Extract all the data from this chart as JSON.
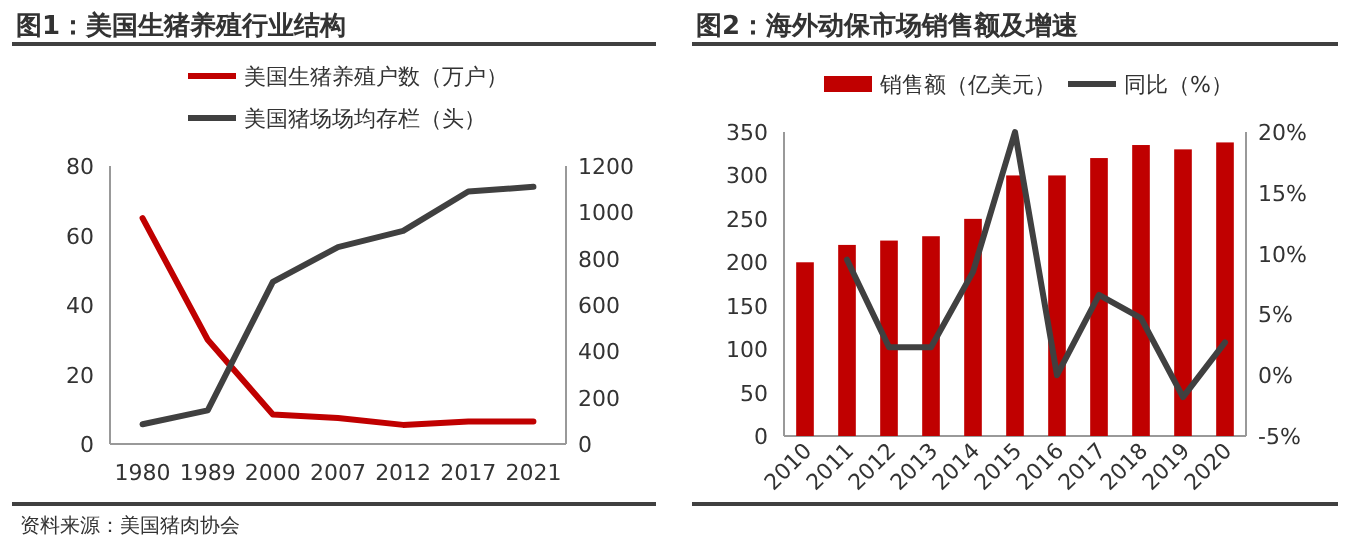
{
  "chart_data": [
    {
      "type": "line",
      "title": "图1：美国生猪养殖行业结构",
      "categories": [
        "1980",
        "1989",
        "2000",
        "2007",
        "2012",
        "2017",
        "2021"
      ],
      "series": [
        {
          "name": "美国生猪养殖户数（万户）",
          "color": "#c00000",
          "values": [
            65,
            30,
            8.5,
            7.5,
            5.5,
            6.5,
            6.5
          ]
        },
        {
          "name": "美国猪场场均存栏（头）",
          "color": "#404040",
          "axis": "y2",
          "values": [
            85,
            145,
            700,
            850,
            920,
            1090,
            1110
          ]
        }
      ],
      "ylim": [
        0,
        80
      ],
      "yticks": [
        0,
        20,
        40,
        60,
        80
      ],
      "y2lim": [
        0,
        1200
      ],
      "y2ticks": [
        0,
        200,
        400,
        600,
        800,
        1000,
        1200
      ],
      "legend": "top",
      "grid": false,
      "annotations": [
        "资料来源：美国猪肉协会"
      ]
    },
    {
      "type": "bar",
      "title": "图2：海外动保市场销售额及增速",
      "categories": [
        "2010",
        "2011",
        "2012",
        "2013",
        "2014",
        "2015",
        "2016",
        "2017",
        "2018",
        "2019",
        "2020"
      ],
      "series": [
        {
          "name": "销售额（亿美元）",
          "color": "#c00000",
          "values": [
            200,
            220,
            225,
            230,
            250,
            300,
            300,
            320,
            335,
            330,
            338
          ]
        },
        {
          "name": "同比（%）",
          "type": "line",
          "color": "#404040",
          "axis": "y2",
          "values": [
            null,
            9.5,
            2.3,
            2.3,
            8.5,
            20,
            0,
            6.6,
            4.7,
            -1.8,
            2.7
          ]
        }
      ],
      "ylim": [
        0,
        350
      ],
      "yticks": [
        0,
        50,
        100,
        150,
        200,
        250,
        300,
        350
      ],
      "y2lim": [
        -5,
        20
      ],
      "y2ticks": [
        {
          "value": -5,
          "label": "-5%"
        },
        {
          "value": 0,
          "label": "0%"
        },
        {
          "value": 5,
          "label": "5%"
        },
        {
          "value": 10,
          "label": "10%"
        },
        {
          "value": 15,
          "label": "15%"
        },
        {
          "value": 20,
          "label": "20%"
        }
      ],
      "legend": "top",
      "grid": false
    }
  ]
}
